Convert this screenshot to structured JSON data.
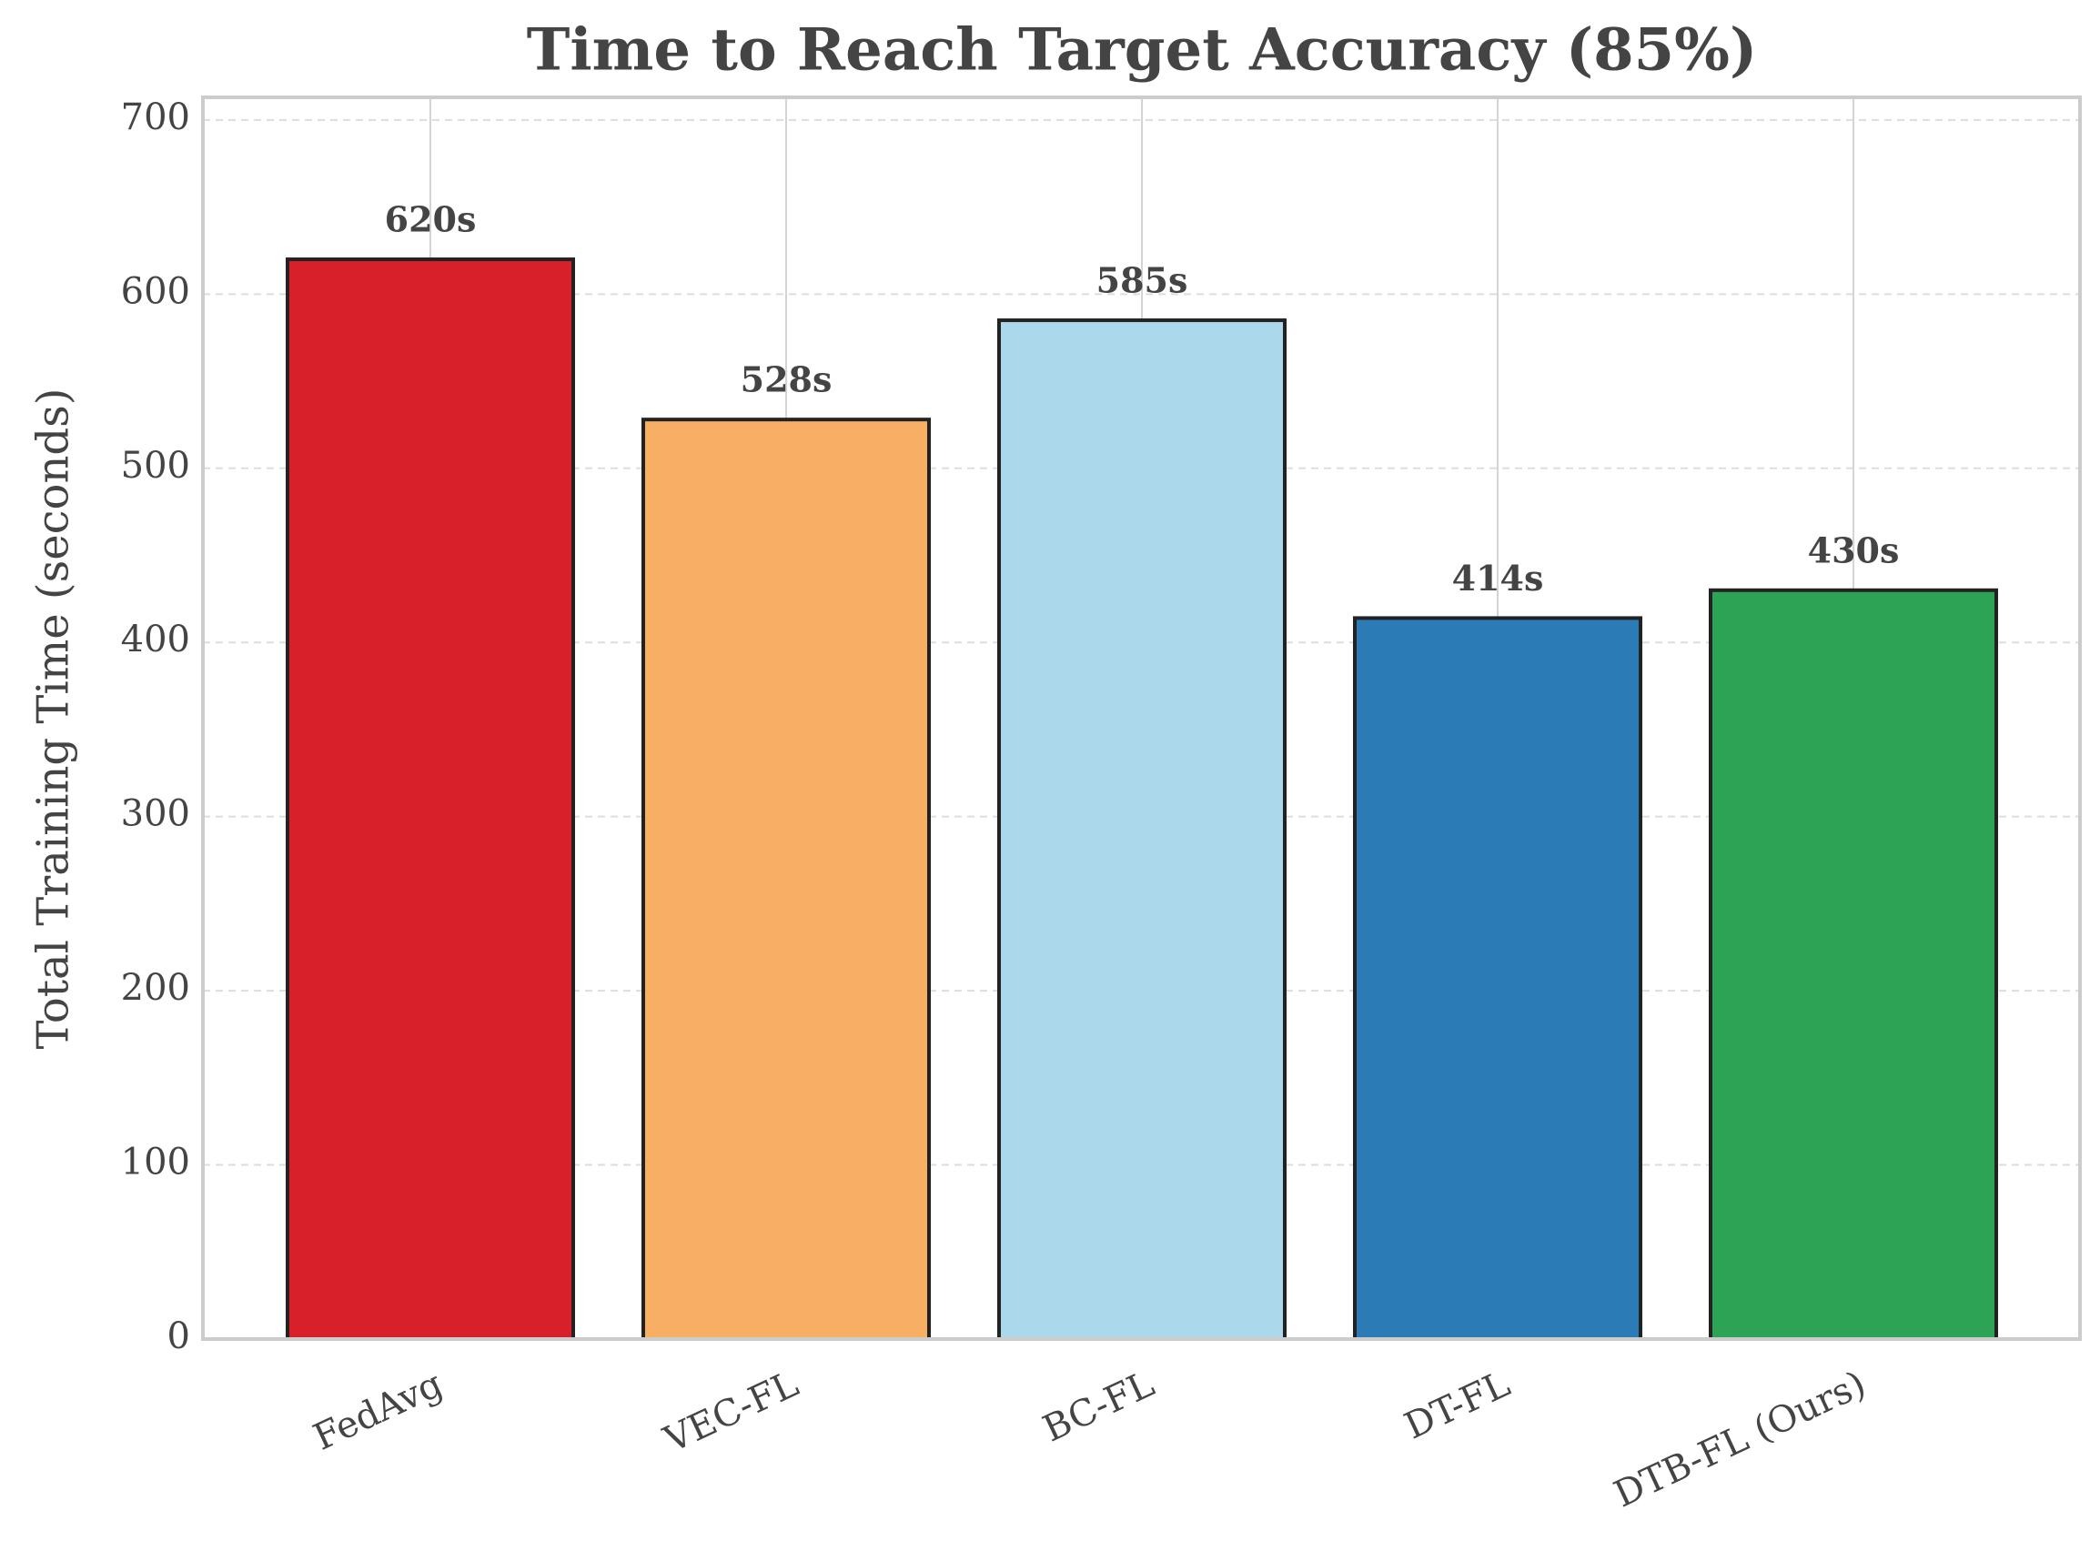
{
  "chart_data": {
    "type": "bar",
    "title": "Time to Reach Target Accuracy (85%)",
    "ylabel": "Total Training Time (seconds)",
    "categories": [
      "FedAvg",
      "VEC-FL",
      "BC-FL",
      "DT-FL",
      "DTB-FL (Ours)"
    ],
    "values": [
      620,
      528,
      585,
      414,
      430
    ],
    "value_labels": [
      "620s",
      "528s",
      "585s",
      "414s",
      "430s"
    ],
    "colors": [
      "#d7202a",
      "#f8ae63",
      "#acd8eb",
      "#2b7bb7",
      "#2ca355"
    ],
    "ylim": [
      0,
      713
    ],
    "yticks": [
      0,
      100,
      200,
      300,
      400,
      500,
      600,
      700
    ],
    "grid": true
  }
}
